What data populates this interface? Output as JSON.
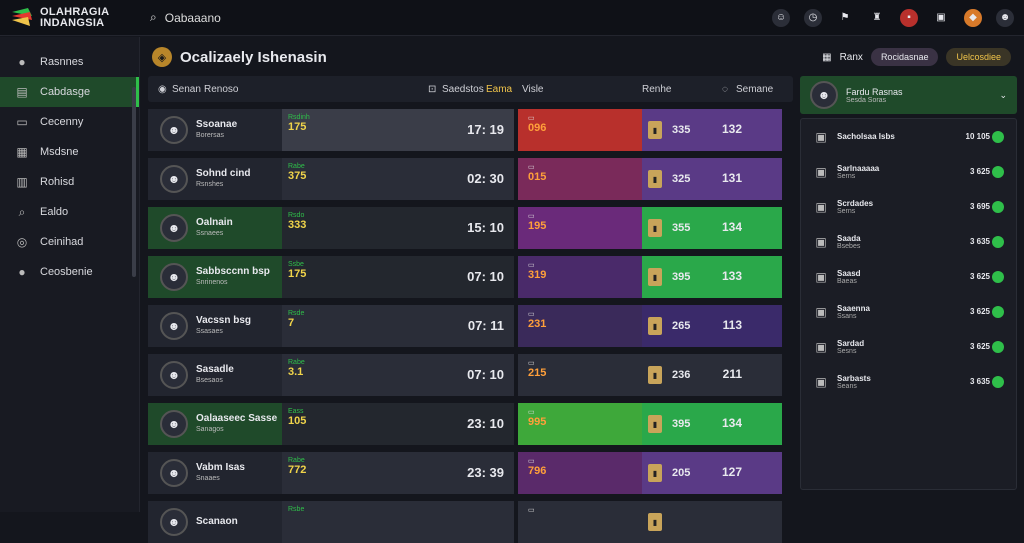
{
  "app": {
    "logo_line1": "OLAHRAGIA",
    "logo_line2": "INDANGSIA"
  },
  "search": {
    "value": "Oabaaano"
  },
  "sidebar": {
    "items": [
      {
        "label": "Rasnnes",
        "icon": "user-avatar"
      },
      {
        "label": "Cabdasge",
        "icon": "dashboard-icon"
      },
      {
        "label": "Cecenny",
        "icon": "monitor-icon"
      },
      {
        "label": "Msdsne",
        "icon": "calendar-icon"
      },
      {
        "label": "Rohisd",
        "icon": "stats-icon"
      },
      {
        "label": "Ealdo",
        "icon": "search-icon"
      },
      {
        "label": "Ceinihad",
        "icon": "globe-icon"
      },
      {
        "label": "Ceosbenie",
        "icon": "user-avatar"
      }
    ]
  },
  "page": {
    "title": "Ocalizaely Ishenasin"
  },
  "table": {
    "headers": [
      "Senan",
      "Renoso",
      "Saedstos",
      "Eama",
      "Visle",
      "Renhe",
      "Semane"
    ],
    "rows": [
      {
        "name": "Ssoanae",
        "sub": "Borersas",
        "s_small": "Rsdinh",
        "s_big": "175",
        "score": "17: 19",
        "o_big": "096",
        "v1": "335",
        "v2": "132",
        "bg2": "#3a3d48",
        "bg3": "#b8302c",
        "bg4": "#5a3a86"
      },
      {
        "name": "Sohnd cind",
        "sub": "Rsnshes",
        "s_small": "Rabe",
        "s_big": "375",
        "score": "02: 30",
        "o_big": "015",
        "v1": "325",
        "v2": "131",
        "bg2": "#2a2d38",
        "bg3": "#7a2a5a",
        "bg4": "#5a3a86"
      },
      {
        "name": "Oalnain",
        "sub": "Ssnaees",
        "s_small": "Rsdo",
        "s_big": "333",
        "score": "15: 10",
        "o_big": "195",
        "v1": "355",
        "v2": "134",
        "bg2": "#2a9d3a",
        "bg3": "#6a2a7a",
        "bg4": "#2aa84a"
      },
      {
        "name": "Sabbsccnn bsp",
        "sub": "Snrinenos",
        "s_small": "Ssbe",
        "s_big": "175",
        "score": "07: 10",
        "o_big": "319",
        "v1": "395",
        "v2": "133",
        "bg2": "#2a9d3a",
        "bg3": "#4a2a6a",
        "bg4": "#2aa84a"
      },
      {
        "name": "Vacssn bsg",
        "sub": "Ssasaes",
        "s_small": "Rsde",
        "s_big": "7",
        "score": "07: 11",
        "o_big": "231",
        "v1": "265",
        "v2": "113",
        "bg2": "#2a2d38",
        "bg3": "#3a2a5a",
        "bg4": "#3a2a6a"
      },
      {
        "name": "Sasadle",
        "sub": "Bsesaos",
        "s_small": "Rabe",
        "s_big": "3.1",
        "score": "07: 10",
        "o_big": "215",
        "v1": "236",
        "v2": "211",
        "bg2": "#2a2d38",
        "bg3": "#2a2d38",
        "bg4": "#2a2d38"
      },
      {
        "name": "Oalaaseec Sasse",
        "sub": "Sanagos",
        "s_small": "Eass",
        "s_big": "105",
        "score": "23: 10",
        "o_big": "995",
        "v1": "395",
        "v2": "134",
        "bg2": "#2a9d3a",
        "bg3": "#3ea83a",
        "bg4": "#2aa84a"
      },
      {
        "name": "Vabm Isas",
        "sub": "Snaaes",
        "s_small": "Rabe",
        "s_big": "772",
        "score": "23: 39",
        "o_big": "796",
        "v1": "205",
        "v2": "127",
        "bg2": "#2a2d38",
        "bg3": "#5a2a6a",
        "bg4": "#5a3a86"
      },
      {
        "name": "Scanaon",
        "sub": "",
        "s_small": "Rsbe",
        "s_big": "",
        "score": "",
        "o_big": "",
        "v1": "",
        "v2": "",
        "bg2": "#2a2d38",
        "bg3": "#2a2d38",
        "bg4": "#2a2d38"
      }
    ]
  },
  "right": {
    "top_labels": [
      "Ranx",
      "Rocidasnae",
      "Uelcosdiee"
    ],
    "match_card": {
      "line1": "Fardu Rasnas",
      "line2": "Sesda Soras"
    },
    "items": [
      {
        "name": "Sacholsaa Isbs",
        "sub": "",
        "num": "10 105"
      },
      {
        "name": "Sarlnaaaaa",
        "sub": "Serns",
        "num": "3 625"
      },
      {
        "name": "Scrdades",
        "sub": "Serns",
        "num": "3 695"
      },
      {
        "name": "Saada",
        "sub": "Bsebes",
        "num": "3 635"
      },
      {
        "name": "Saasd",
        "sub": "Baeas",
        "num": "3 625"
      },
      {
        "name": "Saaenna",
        "sub": "Ssans",
        "num": "3 625"
      },
      {
        "name": "Sardad",
        "sub": "Sesns",
        "num": "3 625"
      },
      {
        "name": "Sarbasts",
        "sub": "Seans",
        "num": "3 635"
      }
    ]
  }
}
